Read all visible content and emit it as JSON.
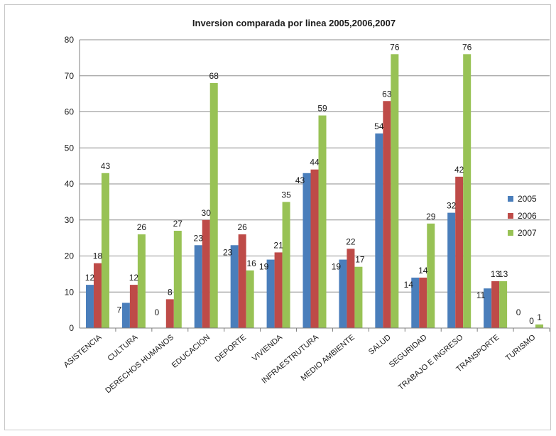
{
  "chart_data": {
    "type": "bar",
    "title": "Inversion comparada por linea  2005,2006,2007",
    "xlabel": "",
    "ylabel": "",
    "ylim": [
      0,
      80
    ],
    "yticks": [
      0,
      10,
      20,
      30,
      40,
      50,
      60,
      70,
      80
    ],
    "grid": true,
    "legend_position": "right",
    "categories": [
      "ASISTENCIA",
      "CULTURA",
      "DERECHOS HUMANOS",
      "EDUCACION",
      "DEPORTE",
      "VIVIENDA",
      "INFRAESTRUTURA",
      "MEDIO AMBIENTE",
      "SALUD",
      "SEGURIDAD",
      "TRABAJO  E INGRESO",
      "TRANSPORTE",
      "TURISMO"
    ],
    "series": [
      {
        "name": "2005",
        "color": "#4a7ebb",
        "values": [
          12,
          7,
          0,
          23,
          23,
          19,
          43,
          19,
          54,
          14,
          32,
          11,
          0
        ]
      },
      {
        "name": "2006",
        "color": "#be4b48",
        "values": [
          18,
          12,
          8,
          30,
          26,
          21,
          44,
          22,
          63,
          14,
          42,
          13,
          0
        ]
      },
      {
        "name": "2007",
        "color": "#98c255",
        "values": [
          43,
          26,
          27,
          68,
          16,
          35,
          59,
          17,
          76,
          29,
          76,
          13,
          1
        ]
      }
    ]
  }
}
